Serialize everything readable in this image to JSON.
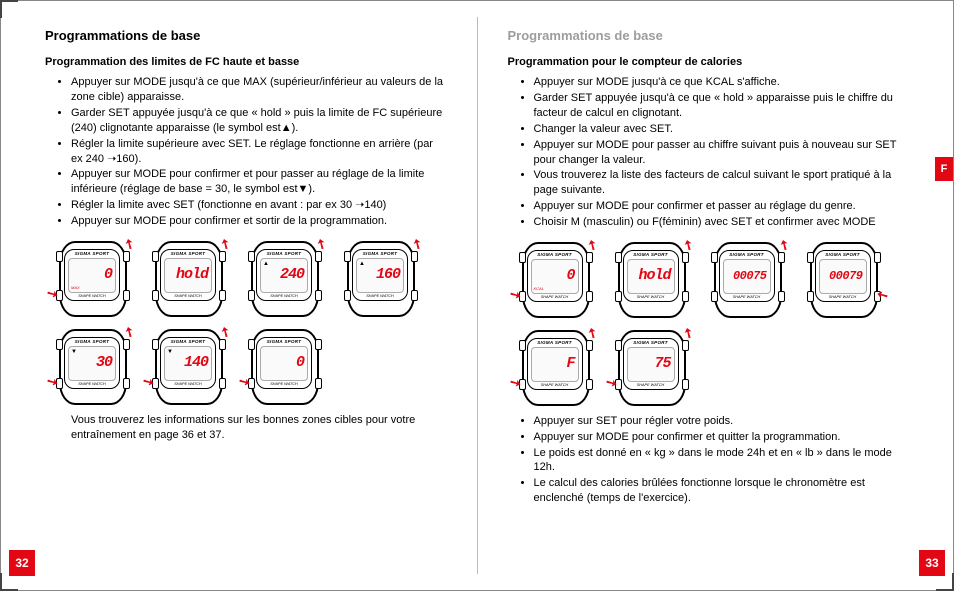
{
  "brand_text": "SIGMA SPORT",
  "model_text": "SHAPE WATCH",
  "accent_color": "#e30613",
  "lang_tab": "F",
  "left": {
    "page_number": "32",
    "title": "Programmations de base",
    "subtitle": "Programmation des limites de FC haute et basse",
    "bullets": [
      "Appuyer sur MODE jusqu'à ce que MAX (supérieur/inférieur au valeurs de la zone cible) apparaisse.",
      "Garder SET appuyée jusqu'à ce que « hold » puis la limite de FC supérieure (240) clignotante apparaisse (le symbol est▲).",
      "Régler la limite supérieure avec SET. Le réglage fonctionne en arrière (par ex 240 ➝160).",
      "Appuyer sur MODE pour confirmer et pour passer au réglage de la limite inférieure (réglage de base = 30, le symbol est▼).",
      "Régler la limite avec SET (fonctionne en avant : par ex 30 ➝140)",
      "Appuyer sur MODE pour confirmer et sortir de la programmation."
    ],
    "footer_note": "Vous trouverez les informations sur les bonnes zones cibles pour votre entraînement en page 36 et 37.",
    "watches": [
      {
        "display": "0",
        "label": "MAX",
        "sym": "",
        "arrows": [
          "bl",
          "tr"
        ]
      },
      {
        "display": "hold",
        "label": "",
        "sym": "",
        "arrows": [
          "tr"
        ]
      },
      {
        "display": "240",
        "label": "",
        "sym": "▲",
        "arrows": [
          "tr"
        ]
      },
      {
        "display": "160",
        "label": "",
        "sym": "▲",
        "arrows": [
          "tr"
        ]
      },
      {
        "display": "30",
        "label": "",
        "sym": "▼",
        "arrows": [
          "bl",
          "tr"
        ]
      },
      {
        "display": "140",
        "label": "",
        "sym": "▼",
        "arrows": [
          "bl",
          "tr"
        ]
      },
      {
        "display": "0",
        "label": "",
        "sym": "",
        "arrows": [
          "bl"
        ]
      }
    ]
  },
  "right": {
    "page_number": "33",
    "title": "Programmations de base",
    "subtitle": "Programmation pour le compteur de calories",
    "bullets_top": [
      "Appuyer sur MODE jusqu'à ce que KCAL s'affiche.",
      "Garder SET appuyée jusqu'à ce que « hold » apparaisse puis le chiffre du facteur de calcul en clignotant.",
      "Changer la valeur avec SET.",
      "Appuyer sur MODE pour passer au chiffre suivant puis à nouveau sur SET pour changer la valeur.",
      "Vous trouverez la liste des facteurs de calcul suivant le sport pratiqué à la page suivante.",
      "Appuyer sur MODE pour confirmer et passer au réglage du genre.",
      "Choisir M (masculin) ou F(féminin) avec SET et confirmer avec MODE"
    ],
    "bullets_bottom": [
      "Appuyer sur SET pour régler votre poids.",
      "Appuyer sur MODE pour confirmer et quitter la programmation.",
      "Le poids est donné en « kg » dans le mode 24h et en « lb » dans le mode 12h.",
      "Le calcul des calories brûlées fonctionne lorsque le chronomètre est enclenché (temps de l'exercice)."
    ],
    "watches": [
      {
        "display": "0",
        "label": "KCAL",
        "sym": "",
        "arrows": [
          "bl",
          "tr"
        ],
        "small": false
      },
      {
        "display": "hold",
        "label": "",
        "sym": "",
        "arrows": [
          "tr"
        ],
        "small": false
      },
      {
        "display": "00075",
        "label": "",
        "sym": "",
        "arrows": [
          "tr"
        ],
        "small": true
      },
      {
        "display": "00079",
        "label": "",
        "sym": "",
        "arrows": [
          "br"
        ],
        "small": true
      },
      {
        "display": "F",
        "label": "",
        "sym": "",
        "arrows": [
          "bl",
          "tr"
        ],
        "small": false
      },
      {
        "display": "75",
        "label": "",
        "sym": "",
        "arrows": [
          "bl",
          "tr"
        ],
        "small": false
      }
    ]
  }
}
